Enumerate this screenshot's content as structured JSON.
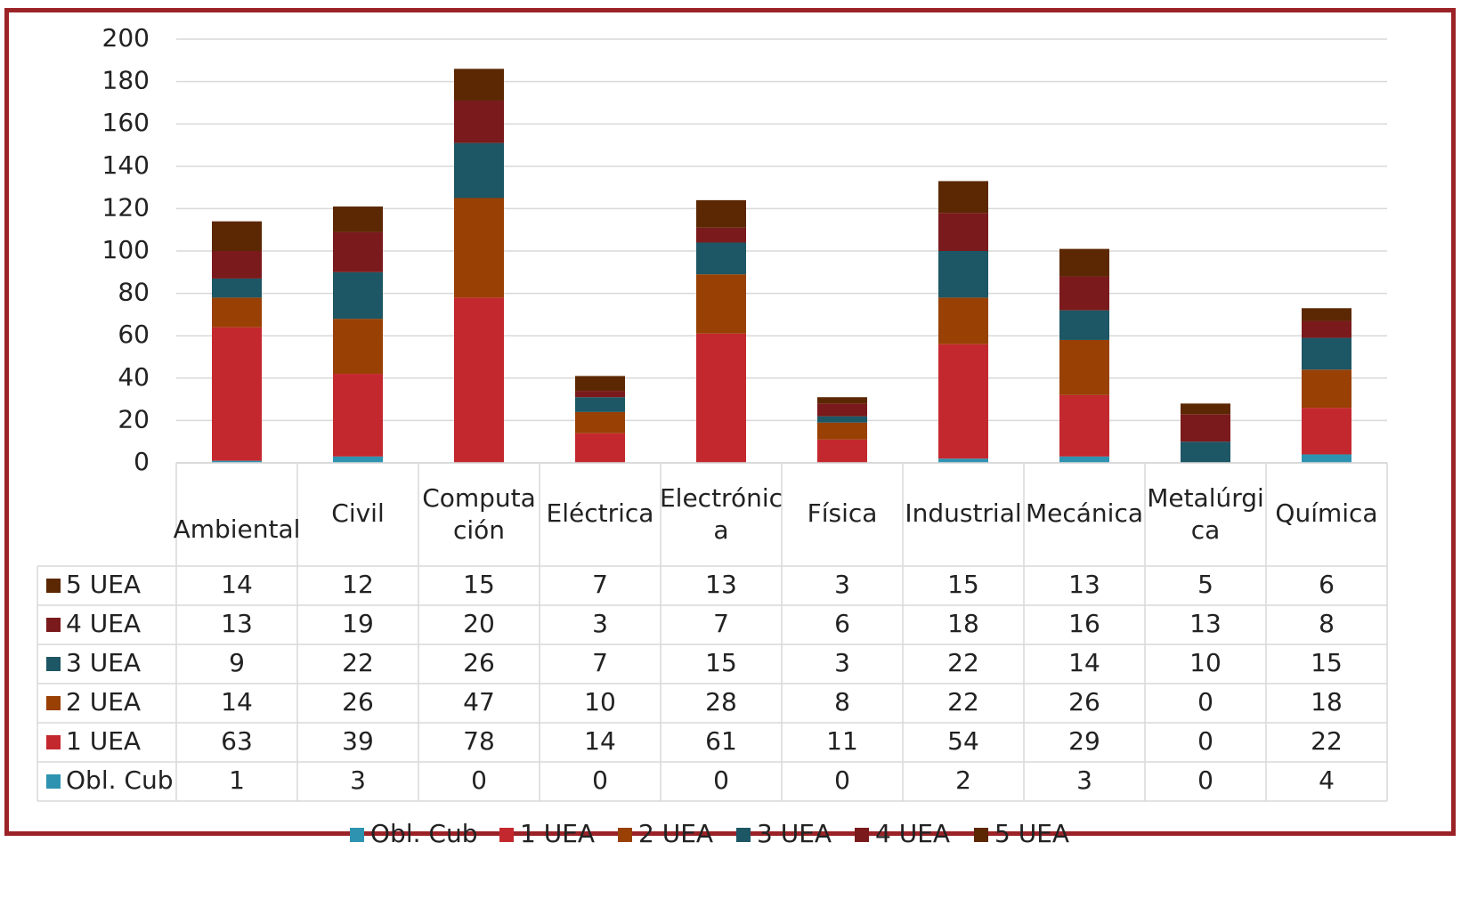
{
  "chart_data": {
    "type": "bar",
    "stacked": true,
    "categories": [
      "Ambiental",
      "Civil",
      "Computación",
      "Eléctrica",
      "Electrónica",
      "Física",
      "Industrial",
      "Mecánica",
      "Metalúrgica",
      "Química"
    ],
    "category_display_lines": [
      [
        "Ambiental"
      ],
      [
        "Civil"
      ],
      [
        "Computa",
        "ción"
      ],
      [
        "Eléctrica"
      ],
      [
        "Electrónic",
        "a"
      ],
      [
        "Física"
      ],
      [
        "Industrial"
      ],
      [
        "Mecánica"
      ],
      [
        "Metalúrgi",
        "ca"
      ],
      [
        "Química"
      ]
    ],
    "series": [
      {
        "name": "Obl. Cub",
        "color": "#2e93b0",
        "values": [
          1,
          3,
          0,
          0,
          0,
          0,
          2,
          3,
          0,
          4
        ]
      },
      {
        "name": "1 UEA",
        "color": "#c4282f",
        "values": [
          63,
          39,
          78,
          14,
          61,
          11,
          54,
          29,
          0,
          22
        ]
      },
      {
        "name": "2 UEA",
        "color": "#994004",
        "values": [
          14,
          26,
          47,
          10,
          28,
          8,
          22,
          26,
          0,
          18
        ]
      },
      {
        "name": "3 UEA",
        "color": "#1d5664",
        "values": [
          9,
          22,
          26,
          7,
          15,
          3,
          22,
          14,
          10,
          15
        ]
      },
      {
        "name": "4 UEA",
        "color": "#7a1a1c",
        "values": [
          13,
          19,
          20,
          3,
          7,
          6,
          18,
          16,
          13,
          8
        ]
      },
      {
        "name": "5 UEA",
        "color": "#5c2803",
        "values": [
          14,
          12,
          15,
          7,
          13,
          3,
          15,
          13,
          5,
          6
        ]
      }
    ],
    "table_row_order": [
      "5 UEA",
      "4 UEA",
      "3 UEA",
      "2 UEA",
      "1 UEA",
      "Obl. Cub"
    ],
    "ylim": [
      0,
      200
    ],
    "yticks": [
      "0",
      "20",
      "40",
      "60",
      "80",
      "100",
      "120",
      "140",
      "160",
      "180",
      "200"
    ],
    "grid": true,
    "legend_position": "bottom",
    "data_table": true
  }
}
